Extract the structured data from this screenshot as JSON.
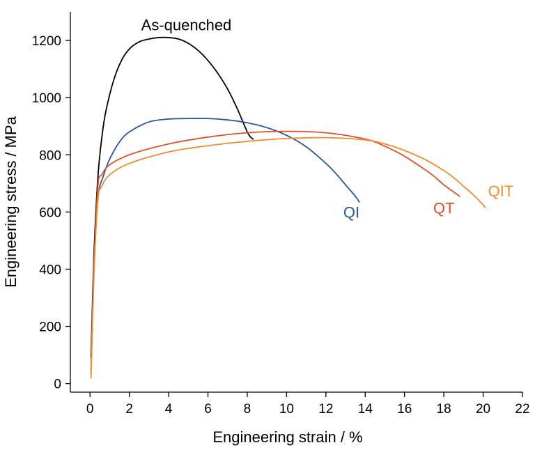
{
  "chart_data": {
    "type": "line",
    "title": "",
    "xlabel": "Engineering strain / %",
    "ylabel": "Engineering stress / MPa",
    "xlim": [
      -1,
      22
    ],
    "ylim": [
      -30,
      1300
    ],
    "xticks": [
      0,
      2,
      4,
      6,
      8,
      10,
      12,
      14,
      16,
      18,
      20,
      22
    ],
    "yticks": [
      0,
      200,
      400,
      600,
      800,
      1000,
      1200
    ],
    "grid": false,
    "legend": "none",
    "series": [
      {
        "name": "As-quenched",
        "color": "#000000",
        "label_anchor": [
          4.9,
          1235
        ],
        "x": [
          0.05,
          0.2,
          0.4,
          0.6,
          0.8,
          1.2,
          1.6,
          2.0,
          2.5,
          3.0,
          3.5,
          4.0,
          4.5,
          5.0,
          5.5,
          6.0,
          6.5,
          7.0,
          7.5,
          8.0,
          8.2,
          8.3
        ],
        "y": [
          90,
          450,
          720,
          860,
          950,
          1060,
          1130,
          1170,
          1195,
          1205,
          1210,
          1210,
          1205,
          1190,
          1165,
          1130,
          1085,
          1030,
          960,
          880,
          860,
          855
        ]
      },
      {
        "name": "QI",
        "color": "#2756a6",
        "label_anchor": [
          13.3,
          580
        ],
        "x": [
          0.05,
          0.2,
          0.4,
          0.7,
          1.0,
          1.5,
          2.0,
          3.0,
          4.0,
          5.0,
          6.0,
          7.0,
          8.0,
          9.0,
          10.0,
          11.0,
          12.0,
          12.5,
          13.0,
          13.5,
          13.7
        ],
        "y": [
          50,
          420,
          650,
          730,
          785,
          845,
          880,
          915,
          925,
          927,
          927,
          922,
          912,
          895,
          868,
          828,
          770,
          735,
          695,
          655,
          635
        ]
      },
      {
        "name": "QT",
        "color": "#e0502b",
        "label_anchor": [
          18.0,
          595
        ],
        "x": [
          0.05,
          0.2,
          0.4,
          0.6,
          1.0,
          2.0,
          4.0,
          6.0,
          8.0,
          10.0,
          12.0,
          14.0,
          15.0,
          16.0,
          17.0,
          17.5,
          18.0,
          18.5,
          18.8
        ],
        "y": [
          30,
          400,
          690,
          730,
          765,
          800,
          838,
          862,
          877,
          882,
          877,
          855,
          830,
          795,
          750,
          725,
          695,
          670,
          655
        ]
      },
      {
        "name": "QIT",
        "color": "#f08c2e",
        "label_anchor": [
          20.9,
          655
        ],
        "x": [
          0.05,
          0.2,
          0.4,
          0.6,
          1.0,
          2.0,
          4.0,
          6.0,
          8.0,
          10.0,
          12.0,
          14.0,
          15.0,
          16.0,
          17.0,
          18.0,
          18.5,
          19.0,
          19.5,
          20.0,
          20.1
        ],
        "y": [
          20,
          380,
          640,
          690,
          730,
          770,
          810,
          832,
          847,
          857,
          860,
          852,
          838,
          815,
          785,
          745,
          720,
          690,
          660,
          625,
          615
        ]
      }
    ]
  }
}
